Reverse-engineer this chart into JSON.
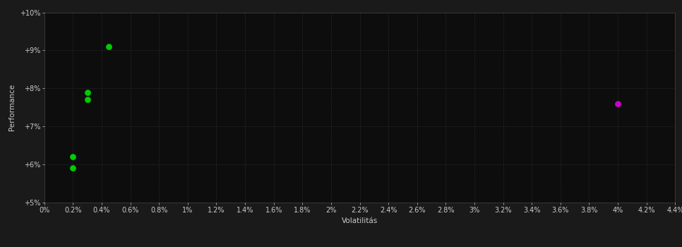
{
  "background_color": "#1a1a1a",
  "plot_bg_color": "#0d0d0d",
  "grid_color": "#444444",
  "text_color": "#cccccc",
  "xlabel": "Volatilitás",
  "ylabel": "Performance",
  "xlim": [
    0.0,
    0.044
  ],
  "ylim": [
    0.05,
    0.1
  ],
  "x_ticks": [
    0.0,
    0.002,
    0.004,
    0.006,
    0.008,
    0.01,
    0.012,
    0.014,
    0.016,
    0.018,
    0.02,
    0.022,
    0.024,
    0.026,
    0.028,
    0.03,
    0.032,
    0.034,
    0.036,
    0.038,
    0.04,
    0.042,
    0.044
  ],
  "x_tick_labels": [
    "0%",
    "0.2%",
    "0.4%",
    "0.6%",
    "0.8%",
    "1%",
    "1.2%",
    "1.4%",
    "1.6%",
    "1.8%",
    "2%",
    "2.2%",
    "2.4%",
    "2.6%",
    "2.8%",
    "3%",
    "3.2%",
    "3.4%",
    "3.6%",
    "3.8%",
    "4%",
    "4.2%",
    "4.4%"
  ],
  "y_ticks": [
    0.05,
    0.06,
    0.07,
    0.08,
    0.09,
    0.1
  ],
  "y_tick_labels": [
    "+5%",
    "+6%",
    "+7%",
    "+8%",
    "+9%",
    "+10%"
  ],
  "green_points": [
    [
      0.002,
      0.062
    ],
    [
      0.002,
      0.059
    ],
    [
      0.003,
      0.079
    ],
    [
      0.003,
      0.077
    ],
    [
      0.0045,
      0.091
    ]
  ],
  "magenta_points": [
    [
      0.04,
      0.076
    ]
  ],
  "green_color": "#00cc00",
  "magenta_color": "#cc00cc",
  "marker_size": 28,
  "axis_fontsize": 7.5,
  "tick_fontsize": 7,
  "grid_linestyle": ":",
  "grid_linewidth": 0.6,
  "grid_alpha": 0.7
}
